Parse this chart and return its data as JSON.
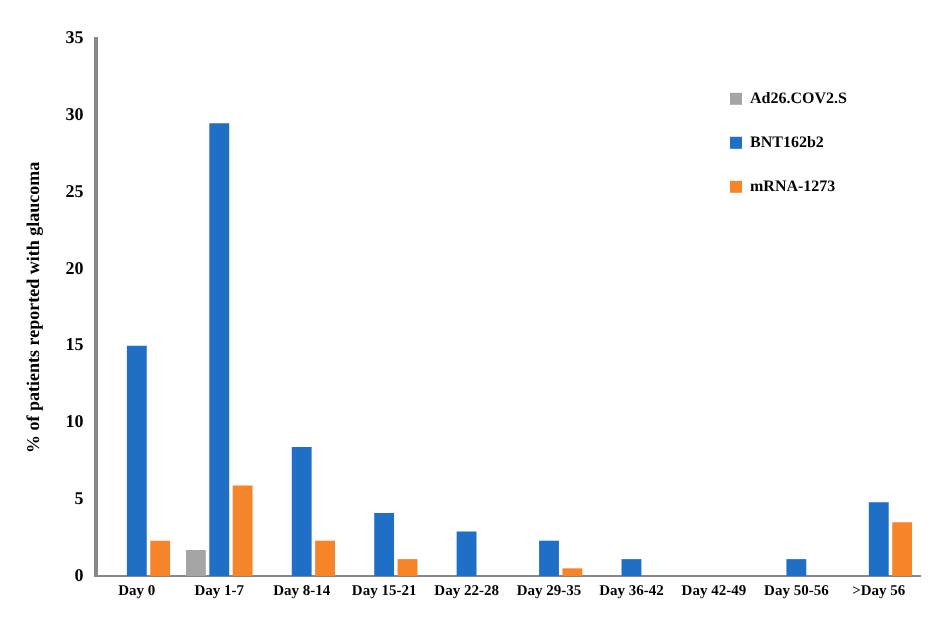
{
  "chart_data": {
    "type": "bar",
    "ylabel": "% of patients reported with glaucoma",
    "categories": [
      "Day 0",
      "Day 1-7",
      "Day 8-14",
      "Day 15-21",
      "Day 22-28",
      "Day 29-35",
      "Day 36-42",
      "Day 42-49",
      "Day 50-56",
      ">Day 56"
    ],
    "series": [
      {
        "name": "Ad26.COV2.S",
        "color": "#a5a5a5",
        "values": [
          0,
          1.7,
          0,
          0,
          0,
          0,
          0,
          0,
          0,
          0
        ]
      },
      {
        "name": "BNT162b2",
        "color": "#1f6fc6",
        "values": [
          15,
          29.5,
          8.4,
          4.1,
          2.9,
          2.3,
          1.1,
          0,
          1.1,
          4.8
        ]
      },
      {
        "name": "mRNA-1273",
        "color": "#f5842a",
        "values": [
          2.3,
          5.9,
          2.3,
          1.1,
          0,
          0.5,
          0,
          0,
          0,
          3.5
        ]
      }
    ],
    "ylim": [
      0,
      35
    ],
    "yticks": [
      0,
      5,
      10,
      15,
      20,
      25,
      30,
      35
    ],
    "grid": false,
    "legend": "top right"
  }
}
